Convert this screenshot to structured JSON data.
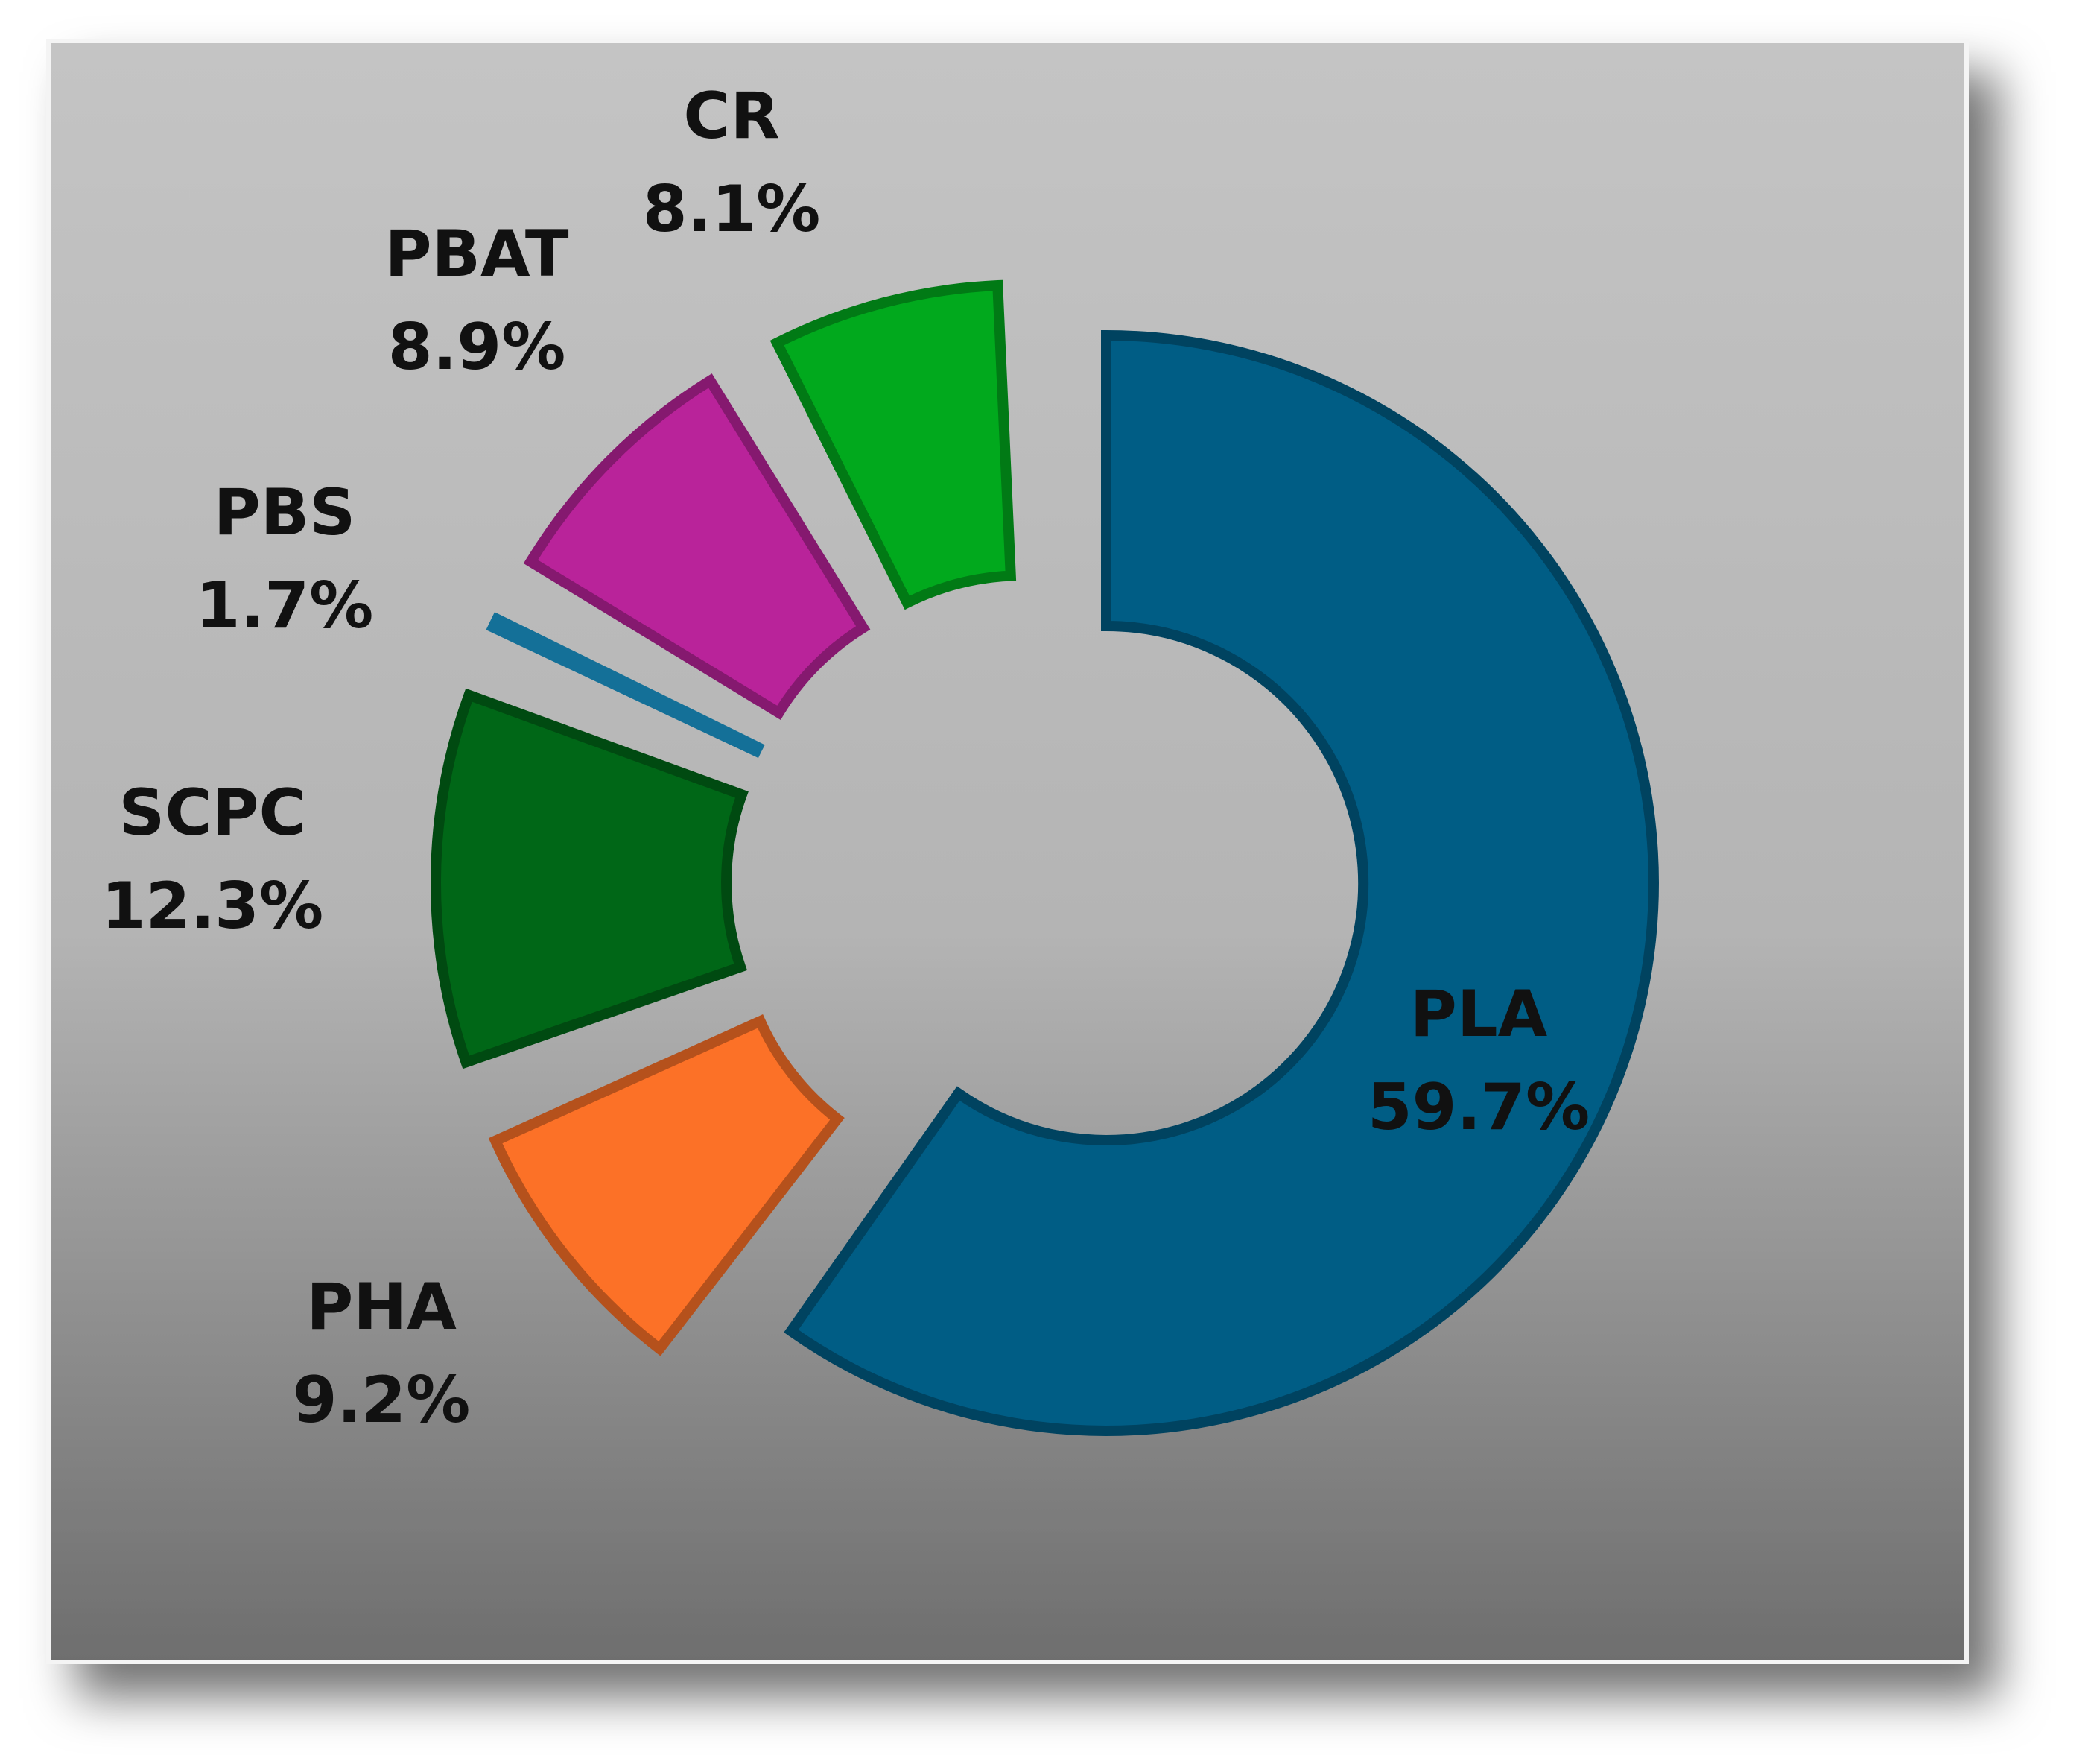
{
  "chart_data": {
    "type": "pie",
    "variant": "donut",
    "title": "",
    "legend": "none",
    "slices": [
      {
        "label": "PLA",
        "value": 59.7,
        "value_label": "59.7%",
        "color": "#005d85"
      },
      {
        "label": "PHA",
        "value": 9.2,
        "value_label": "9.2%",
        "color": "#fc7127"
      },
      {
        "label": "SCPC",
        "value": 12.3,
        "value_label": "12.3%",
        "color": "#006717"
      },
      {
        "label": "PBS",
        "value": 1.7,
        "value_label": "1.7%",
        "color": "#1c9cd3"
      },
      {
        "label": "PBAT",
        "value": 8.9,
        "value_label": "8.9%",
        "color": "#b9239a"
      },
      {
        "label": "CR",
        "value": 8.1,
        "value_label": "8.1%",
        "color": "#01a91d"
      }
    ]
  }
}
